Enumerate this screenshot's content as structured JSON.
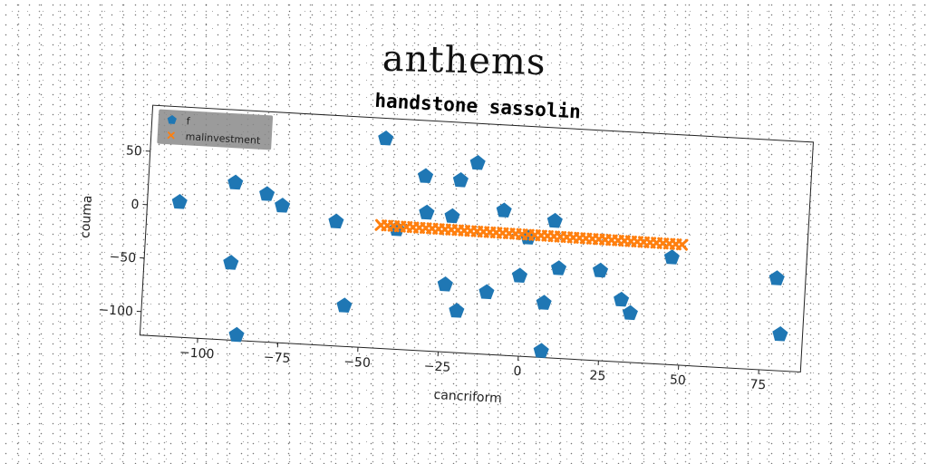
{
  "suptitle": "anthems",
  "chart_data": {
    "type": "scatter",
    "title": "handstone sassolin",
    "xlabel": "cancriform",
    "ylabel": "couma",
    "xlim": [
      -118,
      88
    ],
    "ylim": [
      -122,
      93
    ],
    "xticks": [
      -100,
      -75,
      -50,
      -25,
      0,
      25,
      50,
      75
    ],
    "yticks": [
      50,
      0,
      -50,
      -100
    ],
    "xtick_labels": [
      "−100",
      "−75",
      "−50",
      "−25",
      "0",
      "25",
      "50",
      "75"
    ],
    "ytick_labels": [
      "50",
      "0",
      "−50",
      "−100"
    ],
    "legend_position": "upper-left",
    "grid": false,
    "series": [
      {
        "name": "f",
        "color": "#1f77b4",
        "marker": "pentagon",
        "x": [
          -108,
          -91,
          -91,
          -88,
          -81,
          -76,
          -59,
          -55,
          -45,
          -40,
          -32,
          -31,
          -24,
          -23,
          -21,
          -20,
          -16,
          -11,
          -7,
          -1,
          1,
          7,
          7,
          9,
          11,
          24,
          31,
          34,
          46,
          79,
          81
        ],
        "y": [
          4,
          25,
          -50,
          -117,
          16,
          6,
          -6,
          -84,
          74,
          -10,
          41,
          7,
          -59,
          5,
          39,
          -83,
          56,
          -64,
          13,
          -47,
          -11,
          -116,
          -71,
          6,
          -38,
          -38,
          -64,
          -76,
          -22,
          -36,
          -88
        ]
      },
      {
        "name": "malinvestment",
        "color": "#ff7f0e",
        "marker": "x",
        "x": [
          -45,
          -43,
          -41,
          -39,
          -37,
          -35,
          -33,
          -31,
          -29,
          -27,
          -25,
          -23,
          -21,
          -19,
          -17,
          -15,
          -13,
          -11,
          -9,
          -7,
          -5,
          -3,
          -1,
          1,
          3,
          5,
          7,
          9,
          11,
          13,
          15,
          17,
          19,
          21,
          23,
          25,
          27,
          29,
          31,
          33,
          35,
          37,
          39,
          41,
          43,
          45,
          47,
          49
        ],
        "y": [
          -7.0,
          -7.05,
          -7.1,
          -7.15,
          -7.2,
          -7.25,
          -7.3,
          -7.35,
          -7.4,
          -7.45,
          -7.5,
          -7.55,
          -7.6,
          -7.65,
          -7.7,
          -7.75,
          -7.8,
          -7.85,
          -7.9,
          -7.95,
          -8.0,
          -8.05,
          -8.1,
          -8.15,
          -8.2,
          -8.25,
          -8.3,
          -8.35,
          -8.4,
          -8.45,
          -8.5,
          -8.55,
          -8.6,
          -8.65,
          -8.7,
          -8.75,
          -8.8,
          -8.85,
          -8.9,
          -8.95,
          -9.0,
          -9.05,
          -9.1,
          -9.15,
          -9.2,
          -9.25,
          -9.3,
          -9.35
        ]
      }
    ]
  }
}
